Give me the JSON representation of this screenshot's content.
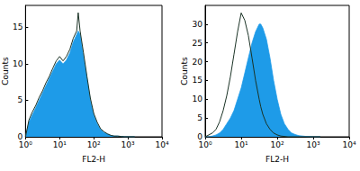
{
  "chart_data": [
    {
      "type": "line",
      "xlabel": "FL2-H",
      "ylabel": "Counts",
      "log": "x",
      "xlim": [
        1,
        10000
      ],
      "xticks": [
        {
          "value": 1,
          "label": "10⁰"
        },
        {
          "value": 10,
          "label": "10¹"
        },
        {
          "value": 100,
          "label": "10²"
        },
        {
          "value": 1000,
          "label": "10³"
        },
        {
          "value": 10000,
          "label": "10⁴"
        }
      ],
      "ylim": [
        0,
        18
      ],
      "yticks": [
        0,
        5,
        10,
        15
      ],
      "x": [
        1,
        1.26,
        1.58,
        2,
        2.51,
        3.16,
        3.98,
        5.01,
        6.31,
        7.94,
        10,
        12.6,
        15.8,
        20,
        25.1,
        31.6,
        35,
        39.8,
        50.1,
        63.1,
        79.4,
        100,
        126,
        158,
        200,
        251,
        316,
        398,
        501,
        631,
        794,
        1000,
        1260,
        1580
      ],
      "series": [
        {
          "type": "area",
          "color": "#1e9be8",
          "values": [
            0,
            2,
            3,
            4,
            5,
            6,
            7,
            8,
            9,
            10,
            10.5,
            10,
            10.5,
            11.5,
            13,
            14,
            14.5,
            14,
            11,
            8,
            5,
            3,
            1.8,
            1,
            0.6,
            0.4,
            0.2,
            0.1,
            0.1,
            0.05,
            0,
            0,
            0,
            0
          ]
        },
        {
          "type": "line",
          "color": "#1b3326",
          "values": [
            0,
            2.3,
            3.4,
            4.3,
            5.4,
            6.3,
            7.4,
            8.3,
            9.4,
            10.4,
            11,
            10.4,
            11,
            12,
            13.5,
            14.5,
            17,
            14.5,
            11.5,
            8.3,
            5.3,
            3.2,
            2,
            1.1,
            0.7,
            0.4,
            0.2,
            0.1,
            0.1,
            0.05,
            0,
            0,
            0,
            0
          ]
        }
      ]
    },
    {
      "type": "line",
      "xlabel": "FL2-H",
      "ylabel": "Counts",
      "log": "x",
      "xlim": [
        1,
        10000
      ],
      "xticks": [
        {
          "value": 1,
          "label": "10⁰"
        },
        {
          "value": 10,
          "label": "10¹"
        },
        {
          "value": 100,
          "label": "10²"
        },
        {
          "value": 1000,
          "label": "10³"
        },
        {
          "value": 10000,
          "label": "10⁴"
        }
      ],
      "ylim": [
        0,
        35
      ],
      "yticks": [
        0,
        5,
        10,
        15,
        20,
        25,
        30
      ],
      "x": [
        1,
        1.26,
        1.58,
        2,
        2.51,
        3.16,
        3.98,
        5.01,
        6.31,
        7.94,
        10,
        12.6,
        15.8,
        20,
        25.1,
        31.6,
        35,
        39.8,
        50.1,
        63.1,
        79.4,
        100,
        126,
        158,
        200,
        251,
        316,
        398,
        501,
        631,
        794,
        1000,
        1260,
        1580
      ],
      "series": [
        {
          "type": "area",
          "color": "#1e9be8",
          "values": [
            0,
            0,
            0.2,
            0.5,
            1,
            2,
            3.5,
            5,
            7,
            10,
            13,
            17,
            21,
            25,
            28,
            30,
            30,
            29,
            26,
            21,
            15,
            10,
            6,
            3.5,
            2,
            1,
            0.6,
            0.3,
            0.2,
            0.1,
            0.05,
            0,
            0,
            0
          ]
        },
        {
          "type": "line",
          "color": "#1b3326",
          "values": [
            0,
            0.5,
            1,
            2,
            4,
            7,
            11,
            16,
            22,
            28,
            33,
            31,
            27,
            21,
            15,
            10,
            8,
            6,
            3.5,
            2,
            1,
            0.5,
            0.2,
            0.1,
            0,
            0,
            0,
            0,
            0,
            0,
            0,
            0,
            0,
            0
          ]
        }
      ]
    }
  ]
}
